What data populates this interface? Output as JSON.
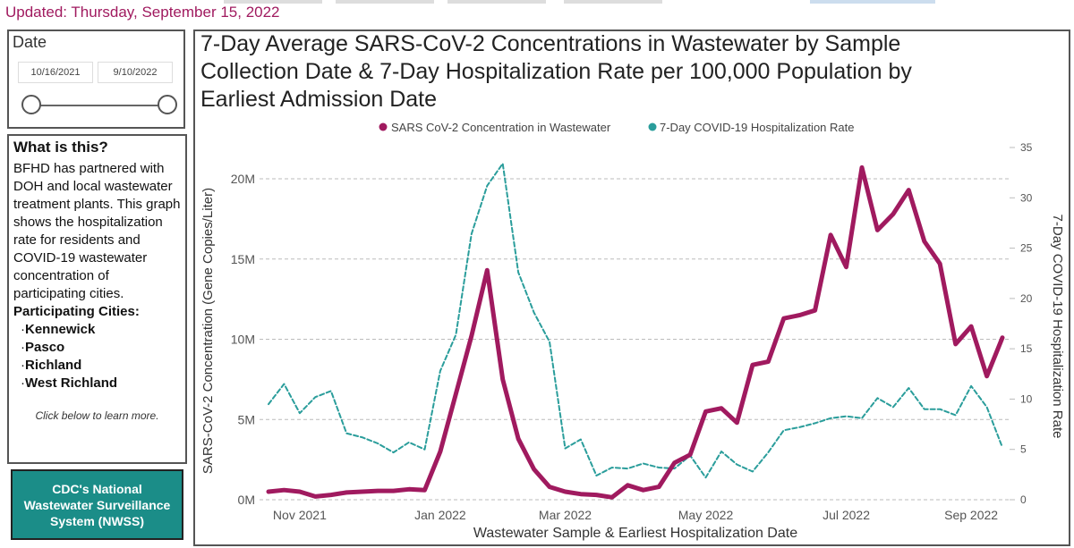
{
  "header": {
    "updated": "Updated: Thursday, September 15, 2022"
  },
  "date_filter": {
    "label": "Date",
    "start": "10/16/2021",
    "end": "9/10/2022"
  },
  "info": {
    "title": "What is this?",
    "text": "BFHD has partnered with DOH and local wastewater treatment plants. This graph shows the hospitalization rate for residents and COVID-19 wastewater concentration of participating cities.",
    "cities_title": "Participating Cities:",
    "cities": [
      "Kennewick",
      "Pasco",
      "Richland",
      "West Richland"
    ],
    "note": "Click below to learn more.",
    "button": "CDC's National Wastewater Surveillance System (NWSS)"
  },
  "chart_data": {
    "type": "line",
    "title": "7-Day Average SARS-CoV-2 Concentrations in Wastewater by Sample Collection Date & 7-Day Hospitalization Rate per 100,000 Population by Earliest Admission Date",
    "x_label": "Wastewater Sample & Earliest Hospitalization Date",
    "y_label": "SARS-CoV-2 Concentration (Gene Copies/Liter)",
    "y2_label": "7-Day COVID-19 Hospitalization Rate",
    "categories": [
      null,
      null,
      "Nov 2021",
      null,
      null,
      null,
      null,
      null,
      null,
      null,
      null,
      "Jan 2022",
      null,
      null,
      null,
      null,
      null,
      null,
      null,
      "Mar 2022",
      null,
      null,
      null,
      null,
      null,
      null,
      null,
      null,
      "May 2022",
      null,
      null,
      null,
      null,
      null,
      null,
      null,
      null,
      "Jul 2022",
      null,
      null,
      null,
      null,
      null,
      null,
      null,
      "Sep 2022",
      null,
      null
    ],
    "series": [
      {
        "name": "SARS CoV-2 Concentration in Wastewater",
        "color": "#a01a5f",
        "values": [
          500000,
          600000,
          500000,
          200000,
          300000,
          450000,
          500000,
          550000,
          550000,
          650000,
          600000,
          3000000,
          6600000,
          10200000,
          14300000,
          7500000,
          3800000,
          1900000,
          800000,
          500000,
          350000,
          300000,
          150000,
          900000,
          600000,
          800000,
          2300000,
          2800000,
          5500000,
          5700000,
          4800000,
          8400000,
          8600000,
          11300000,
          11500000,
          11800000,
          16500000,
          14500000,
          20700000,
          16800000,
          17800000,
          19300000,
          16100000,
          14700000,
          9700000,
          10800000,
          7700000,
          10100000
        ]
      },
      {
        "name": "7-Day COVID-19 Hospitalization Rate",
        "color": "#2a9d9b",
        "axis": "y2",
        "dashed": true,
        "values": [
          9.5,
          11.5,
          8.6,
          10.2,
          10.8,
          6.6,
          6.2,
          5.6,
          4.7,
          5.7,
          5.0,
          12.8,
          16.4,
          26.4,
          31.2,
          33.4,
          22.6,
          18.6,
          15.7,
          5.1,
          6.0,
          2.4,
          3.2,
          3.1,
          3.6,
          3.2,
          3.1,
          4.4,
          2.2,
          4.8,
          3.5,
          2.8,
          4.7,
          6.9,
          7.2,
          7.6,
          8.1,
          8.3,
          8.1,
          10.1,
          9.2,
          11.1,
          9.0,
          9.0,
          8.4,
          11.3,
          9.2,
          5.2
        ]
      }
    ],
    "ylim": [
      0,
      21950000
    ],
    "yticks": [
      {
        "value": 0,
        "label": "0M"
      },
      {
        "value": 5000000,
        "label": "5M"
      },
      {
        "value": 10000000,
        "label": "10M"
      },
      {
        "value": 15000000,
        "label": "15M"
      },
      {
        "value": 20000000,
        "label": "20M"
      }
    ],
    "y2lim": [
      0,
      35
    ],
    "y2ticks": [
      0,
      5,
      10,
      15,
      20,
      25,
      30,
      35
    ],
    "grid": true,
    "legend": "top"
  }
}
